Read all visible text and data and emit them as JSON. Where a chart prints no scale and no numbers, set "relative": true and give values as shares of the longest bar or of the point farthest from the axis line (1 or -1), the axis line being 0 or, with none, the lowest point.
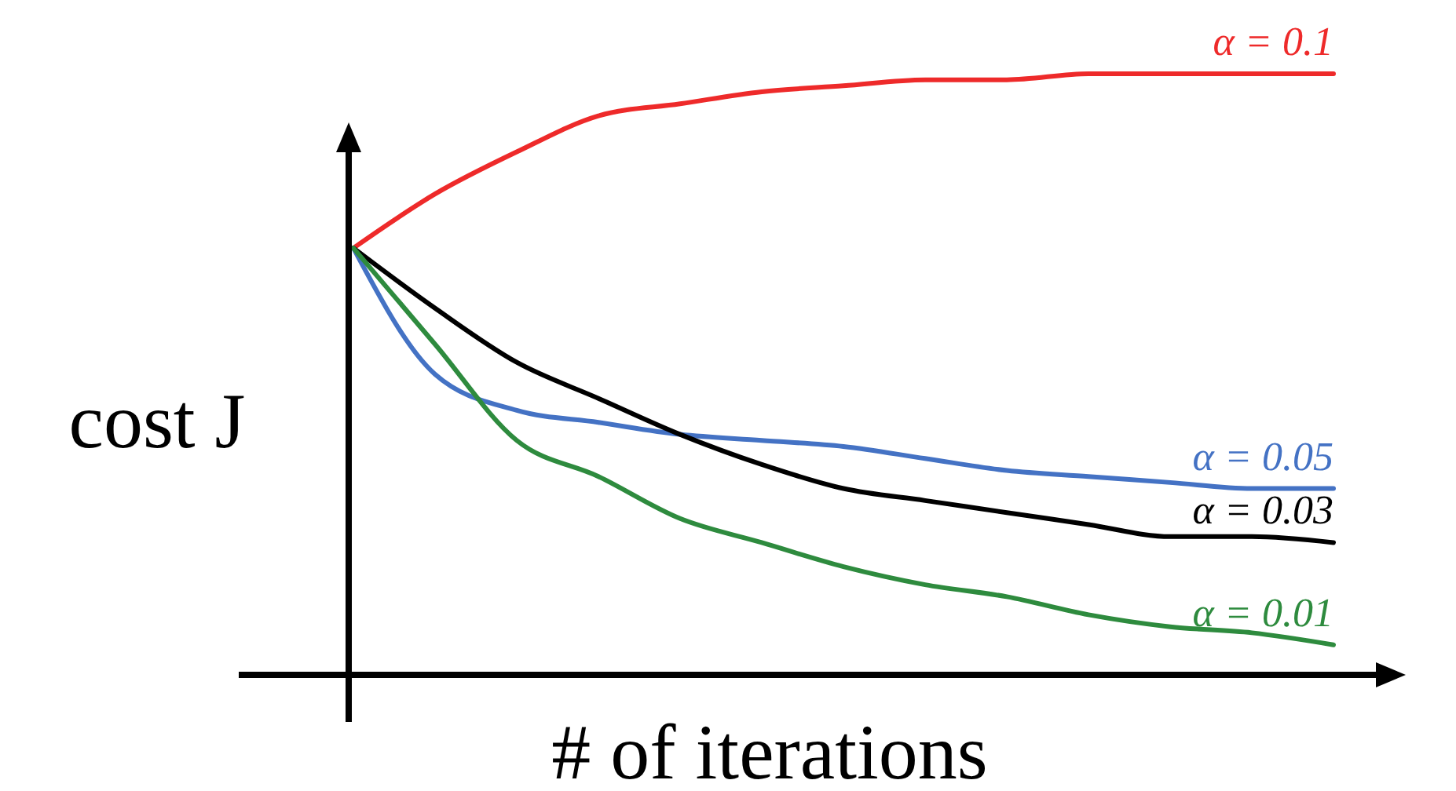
{
  "chart_data": {
    "type": "line",
    "relative": true,
    "xlabel": "# of iterations",
    "ylabel": "cost J",
    "categories": [
      null,
      null,
      null,
      null,
      null,
      null,
      null,
      null,
      null,
      null,
      null,
      null,
      null
    ],
    "marker": "none",
    "line_style": "solid",
    "series": [
      {
        "name": "α = 0.1",
        "color": "#ee2a2a",
        "values": [
          0.71,
          0.8,
          0.87,
          0.93,
          0.95,
          0.97,
          0.98,
          0.99,
          0.99,
          1,
          1,
          1,
          1
        ]
      },
      {
        "name": "α = 0.05",
        "color": "#4472c4",
        "values": [
          0.71,
          0.5,
          0.44,
          0.42,
          0.4,
          0.39,
          0.38,
          0.36,
          0.34,
          0.33,
          0.32,
          0.31,
          0.31
        ]
      },
      {
        "name": "α = 0.03",
        "color": "#000000",
        "values": [
          0.71,
          0.61,
          0.52,
          0.46,
          0.4,
          0.35,
          0.31,
          0.29,
          0.27,
          0.25,
          0.23,
          0.23,
          0.22
        ]
      },
      {
        "name": "α = 0.01",
        "color": "#2e8b3e",
        "values": [
          0.71,
          0.55,
          0.39,
          0.33,
          0.26,
          0.22,
          0.18,
          0.15,
          0.13,
          0.1,
          0.08,
          0.07,
          0.05
        ]
      }
    ]
  }
}
